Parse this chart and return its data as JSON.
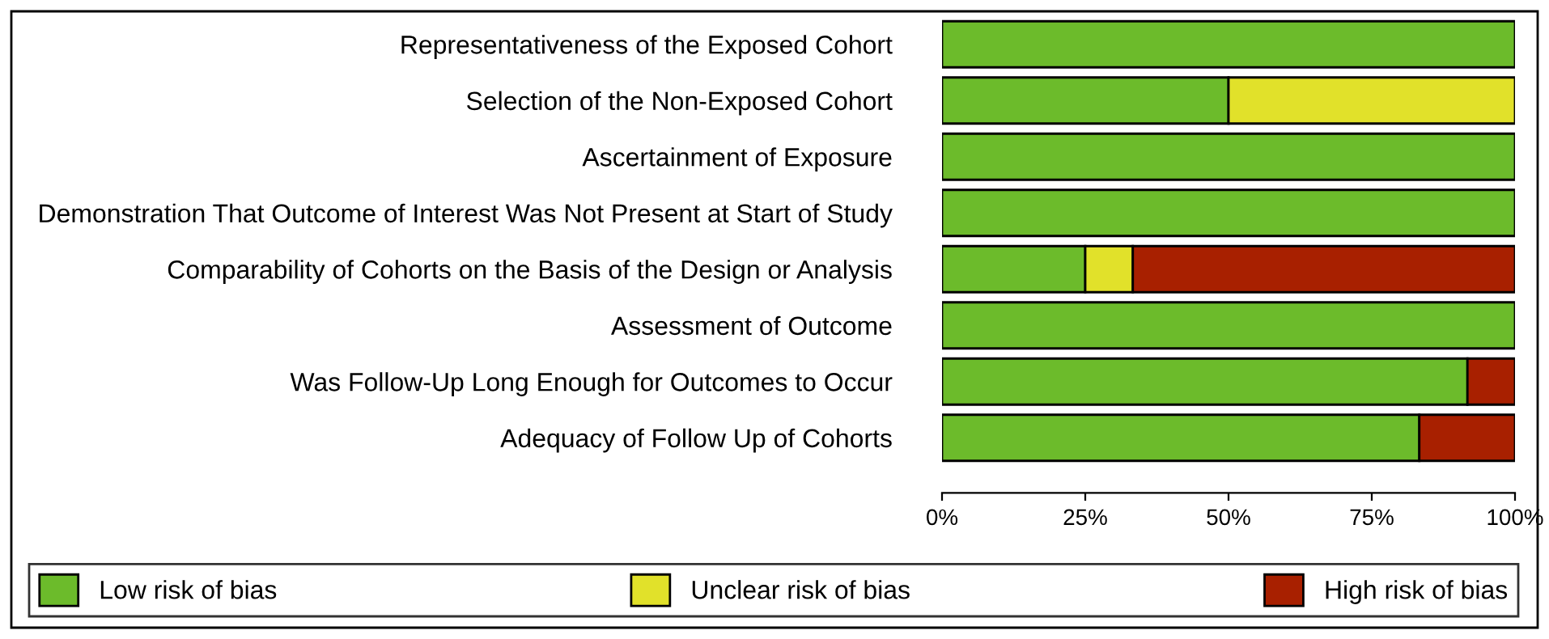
{
  "chart_data": {
    "type": "bar",
    "orientation": "horizontal",
    "stacked": true,
    "categories": [
      "Representativeness of the Exposed Cohort",
      "Selection of the Non-Exposed Cohort",
      "Ascertainment of Exposure",
      "Demonstration That Outcome of Interest Was Not Present at Start of Study",
      "Comparability of Cohorts on the Basis of the Design or Analysis",
      "Assessment of Outcome",
      "Was Follow-Up Long Enough for Outcomes to Occur",
      "Adequacy of Follow Up of Cohorts"
    ],
    "series": [
      {
        "name": "Low risk of bias",
        "color": "#6cbb2b",
        "values": [
          100,
          50,
          100,
          100,
          25,
          100,
          91.7,
          83.3
        ]
      },
      {
        "name": "Unclear risk of bias",
        "color": "#e1e12a",
        "values": [
          0,
          50,
          0,
          0,
          8.3,
          0,
          0,
          0
        ]
      },
      {
        "name": "High risk of bias",
        "color": "#a82000",
        "values": [
          0,
          0,
          0,
          0,
          66.7,
          0,
          8.3,
          16.7
        ]
      }
    ],
    "xlim": [
      0,
      100
    ],
    "xticks": [
      {
        "value": 0,
        "label": "0%"
      },
      {
        "value": 25,
        "label": "25%"
      },
      {
        "value": 50,
        "label": "50%"
      },
      {
        "value": 75,
        "label": "75%"
      },
      {
        "value": 100,
        "label": "100%"
      }
    ],
    "grid": false,
    "legend": "bottom"
  }
}
